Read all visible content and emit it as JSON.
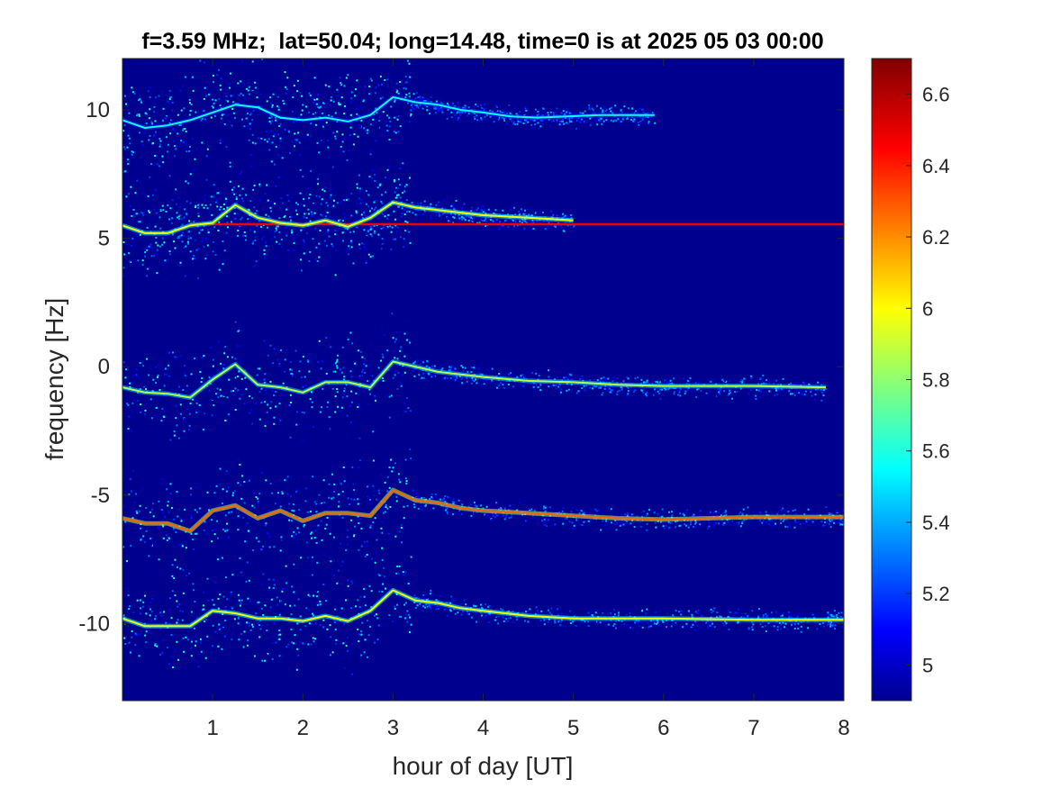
{
  "chart_data": {
    "type": "heatmap",
    "title": "f=3.59 MHz;  lat=50.04; long=14.48, time=0 is at 2025 05 03 00:00",
    "xlabel": "hour of day [UT]",
    "ylabel": "frequency [Hz]",
    "xlim": [
      0,
      8
    ],
    "ylim": [
      -13,
      12
    ],
    "xticks": [
      1,
      2,
      3,
      4,
      5,
      6,
      7,
      8
    ],
    "yticks": [
      -10,
      -5,
      0,
      5,
      10
    ],
    "colormap": "jet",
    "colorbar": {
      "clim": [
        4.9,
        6.7
      ],
      "ticks": [
        5,
        5.2,
        5.4,
        5.6,
        5.8,
        6,
        6.2,
        6.4,
        6.6
      ],
      "tick_labels": [
        "5",
        "5.2",
        "5.4",
        "5.6",
        "5.8",
        "6",
        "6.2",
        "6.4",
        "6.6"
      ]
    },
    "background_value": 4.95,
    "traces": [
      {
        "name": "",
        "points": [
          [
            0,
            9.6
          ],
          [
            0.25,
            9.3
          ],
          [
            0.5,
            9.4
          ],
          [
            0.75,
            9.6
          ],
          [
            1.0,
            9.9
          ],
          [
            1.25,
            10.2
          ],
          [
            1.5,
            10.1
          ],
          [
            1.75,
            9.7
          ],
          [
            2.0,
            9.6
          ],
          [
            2.25,
            9.7
          ],
          [
            2.5,
            9.55
          ],
          [
            2.75,
            9.8
          ],
          [
            3.0,
            10.5
          ],
          [
            3.25,
            10.3
          ],
          [
            3.5,
            10.2
          ],
          [
            3.75,
            10.0
          ],
          [
            4.0,
            9.9
          ],
          [
            4.3,
            9.75
          ],
          [
            4.6,
            9.7
          ],
          [
            5.3,
            9.8
          ],
          [
            5.9,
            9.8
          ]
        ],
        "level": 5.6
      },
      {
        "name": "",
        "points": [
          [
            0,
            5.5
          ],
          [
            0.25,
            5.2
          ],
          [
            0.5,
            5.2
          ],
          [
            0.75,
            5.5
          ],
          [
            1.0,
            5.6
          ],
          [
            1.25,
            6.3
          ],
          [
            1.5,
            5.8
          ],
          [
            1.75,
            5.6
          ],
          [
            2.0,
            5.5
          ],
          [
            2.25,
            5.7
          ],
          [
            2.5,
            5.45
          ],
          [
            2.75,
            5.8
          ],
          [
            3.0,
            6.4
          ],
          [
            3.25,
            6.2
          ],
          [
            3.5,
            6.1
          ],
          [
            3.75,
            6.0
          ],
          [
            4.0,
            5.9
          ],
          [
            4.5,
            5.8
          ],
          [
            5.0,
            5.7
          ]
        ],
        "level": 6.0
      },
      {
        "name": "",
        "points": [
          [
            0,
            -0.8
          ],
          [
            0.25,
            -1.0
          ],
          [
            0.5,
            -1.05
          ],
          [
            0.75,
            -1.2
          ],
          [
            1.0,
            -0.5
          ],
          [
            1.25,
            0.1
          ],
          [
            1.5,
            -0.7
          ],
          [
            1.75,
            -0.8
          ],
          [
            2.0,
            -1.0
          ],
          [
            2.25,
            -0.6
          ],
          [
            2.5,
            -0.6
          ],
          [
            2.75,
            -0.8
          ],
          [
            3.0,
            0.2
          ],
          [
            3.25,
            0.0
          ],
          [
            3.5,
            -0.2
          ],
          [
            3.75,
            -0.3
          ],
          [
            4.0,
            -0.4
          ],
          [
            4.5,
            -0.55
          ],
          [
            5.0,
            -0.6
          ],
          [
            5.5,
            -0.7
          ],
          [
            6.0,
            -0.75
          ],
          [
            7.0,
            -0.75
          ],
          [
            7.8,
            -0.8
          ]
        ],
        "level": 5.9
      },
      {
        "name": "",
        "points": [
          [
            0,
            -5.9
          ],
          [
            0.25,
            -6.1
          ],
          [
            0.5,
            -6.1
          ],
          [
            0.75,
            -6.4
          ],
          [
            1.0,
            -5.6
          ],
          [
            1.25,
            -5.4
          ],
          [
            1.5,
            -5.9
          ],
          [
            1.75,
            -5.6
          ],
          [
            2.0,
            -6.0
          ],
          [
            2.25,
            -5.7
          ],
          [
            2.5,
            -5.7
          ],
          [
            2.75,
            -5.8
          ],
          [
            3.0,
            -4.8
          ],
          [
            3.25,
            -5.2
          ],
          [
            3.5,
            -5.3
          ],
          [
            3.75,
            -5.5
          ],
          [
            4.0,
            -5.6
          ],
          [
            4.5,
            -5.7
          ],
          [
            5.0,
            -5.8
          ],
          [
            5.5,
            -5.9
          ],
          [
            6.0,
            -5.95
          ],
          [
            6.5,
            -5.9
          ],
          [
            7.0,
            -5.85
          ],
          [
            8.0,
            -5.85
          ]
        ],
        "level": 6.3
      },
      {
        "name": "",
        "points": [
          [
            0,
            -9.8
          ],
          [
            0.25,
            -10.1
          ],
          [
            0.5,
            -10.1
          ],
          [
            0.75,
            -10.1
          ],
          [
            1.0,
            -9.5
          ],
          [
            1.25,
            -9.6
          ],
          [
            1.5,
            -9.8
          ],
          [
            1.75,
            -9.8
          ],
          [
            2.0,
            -9.9
          ],
          [
            2.25,
            -9.7
          ],
          [
            2.5,
            -9.9
          ],
          [
            2.75,
            -9.5
          ],
          [
            3.0,
            -8.7
          ],
          [
            3.25,
            -9.1
          ],
          [
            3.5,
            -9.2
          ],
          [
            3.75,
            -9.4
          ],
          [
            4.0,
            -9.5
          ],
          [
            4.5,
            -9.7
          ],
          [
            5.0,
            -9.8
          ],
          [
            6.0,
            -9.8
          ],
          [
            7.0,
            -9.85
          ],
          [
            8.0,
            -9.85
          ]
        ],
        "level": 6.0
      }
    ],
    "steady_lines": [
      {
        "y": 5.55,
        "x_start": 0.75,
        "x_end": 8.0,
        "level": 6.5
      }
    ]
  }
}
